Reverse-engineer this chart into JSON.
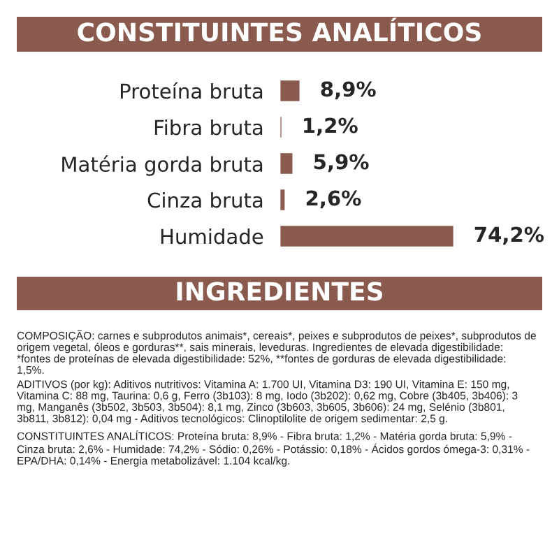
{
  "chart_data": {
    "type": "bar",
    "orientation": "horizontal",
    "title": "CONSTITUINTES ANALÍTICOS",
    "subtitle": "INGREDIENTES",
    "categories": [
      "Proteína bruta",
      "Fibra bruta",
      "Matéria gorda bruta",
      "Cinza bruta",
      "Humidade"
    ],
    "values": [
      8.9,
      1.2,
      5.9,
      2.6,
      74.2
    ],
    "value_labels": [
      "8,9%",
      "1,2%",
      "5,9%",
      "2,6%",
      "74,2%"
    ],
    "color": "#8b5a4e",
    "annotations": [
      "COMPOSIÇÃO: carnes e subprodutos animais*, cereais*, peixes e subprodutos de peixes*, subprodutos de origem vegetal, óleos e gorduras**, sais minerais, leveduras. Ingredientes de elevada digestibilidade: *fontes de proteínas de elevada digestibilidade: 52%, **fontes de gorduras de elevada digestibilidade: 1,5%.",
      "ADITIVOS (por kg): Aditivos nutritivos: Vitamina A: 1.700 UI, Vitamina D3: 190 UI, Vitamina E: 150 mg, Vitamina C: 88 mg, Taurina: 0,6 g, Ferro (3b103): 8 mg, Iodo (3b202): 0,62 mg, Cobre (3b405, 3b406): 3 mg, Manganês (3b502, 3b503, 3b504): 8,1 mg, Zinco (3b603, 3b605, 3b606): 24 mg, Selénio (3b801, 3b811, 3b812): 0,04 mg - Aditivos tecnológicos: Clinoptilolite de origem sedimentar: 2,5 g.",
      "CONSTITUINTES ANALÍTICOS: Proteína bruta: 8,9% - Fibra bruta: 1,2% - Matéria gorda bruta: 5,9% - Cinza bruta: 2,6% - Humidade: 74,2% - Sódio: 0,26% - Potássio: 0,18% - Ácidos gordos ómega-3: 0,31% - EPA/DHA: 0,14% - Energia metabolizável: 1.104 kcal/kg."
    ]
  }
}
